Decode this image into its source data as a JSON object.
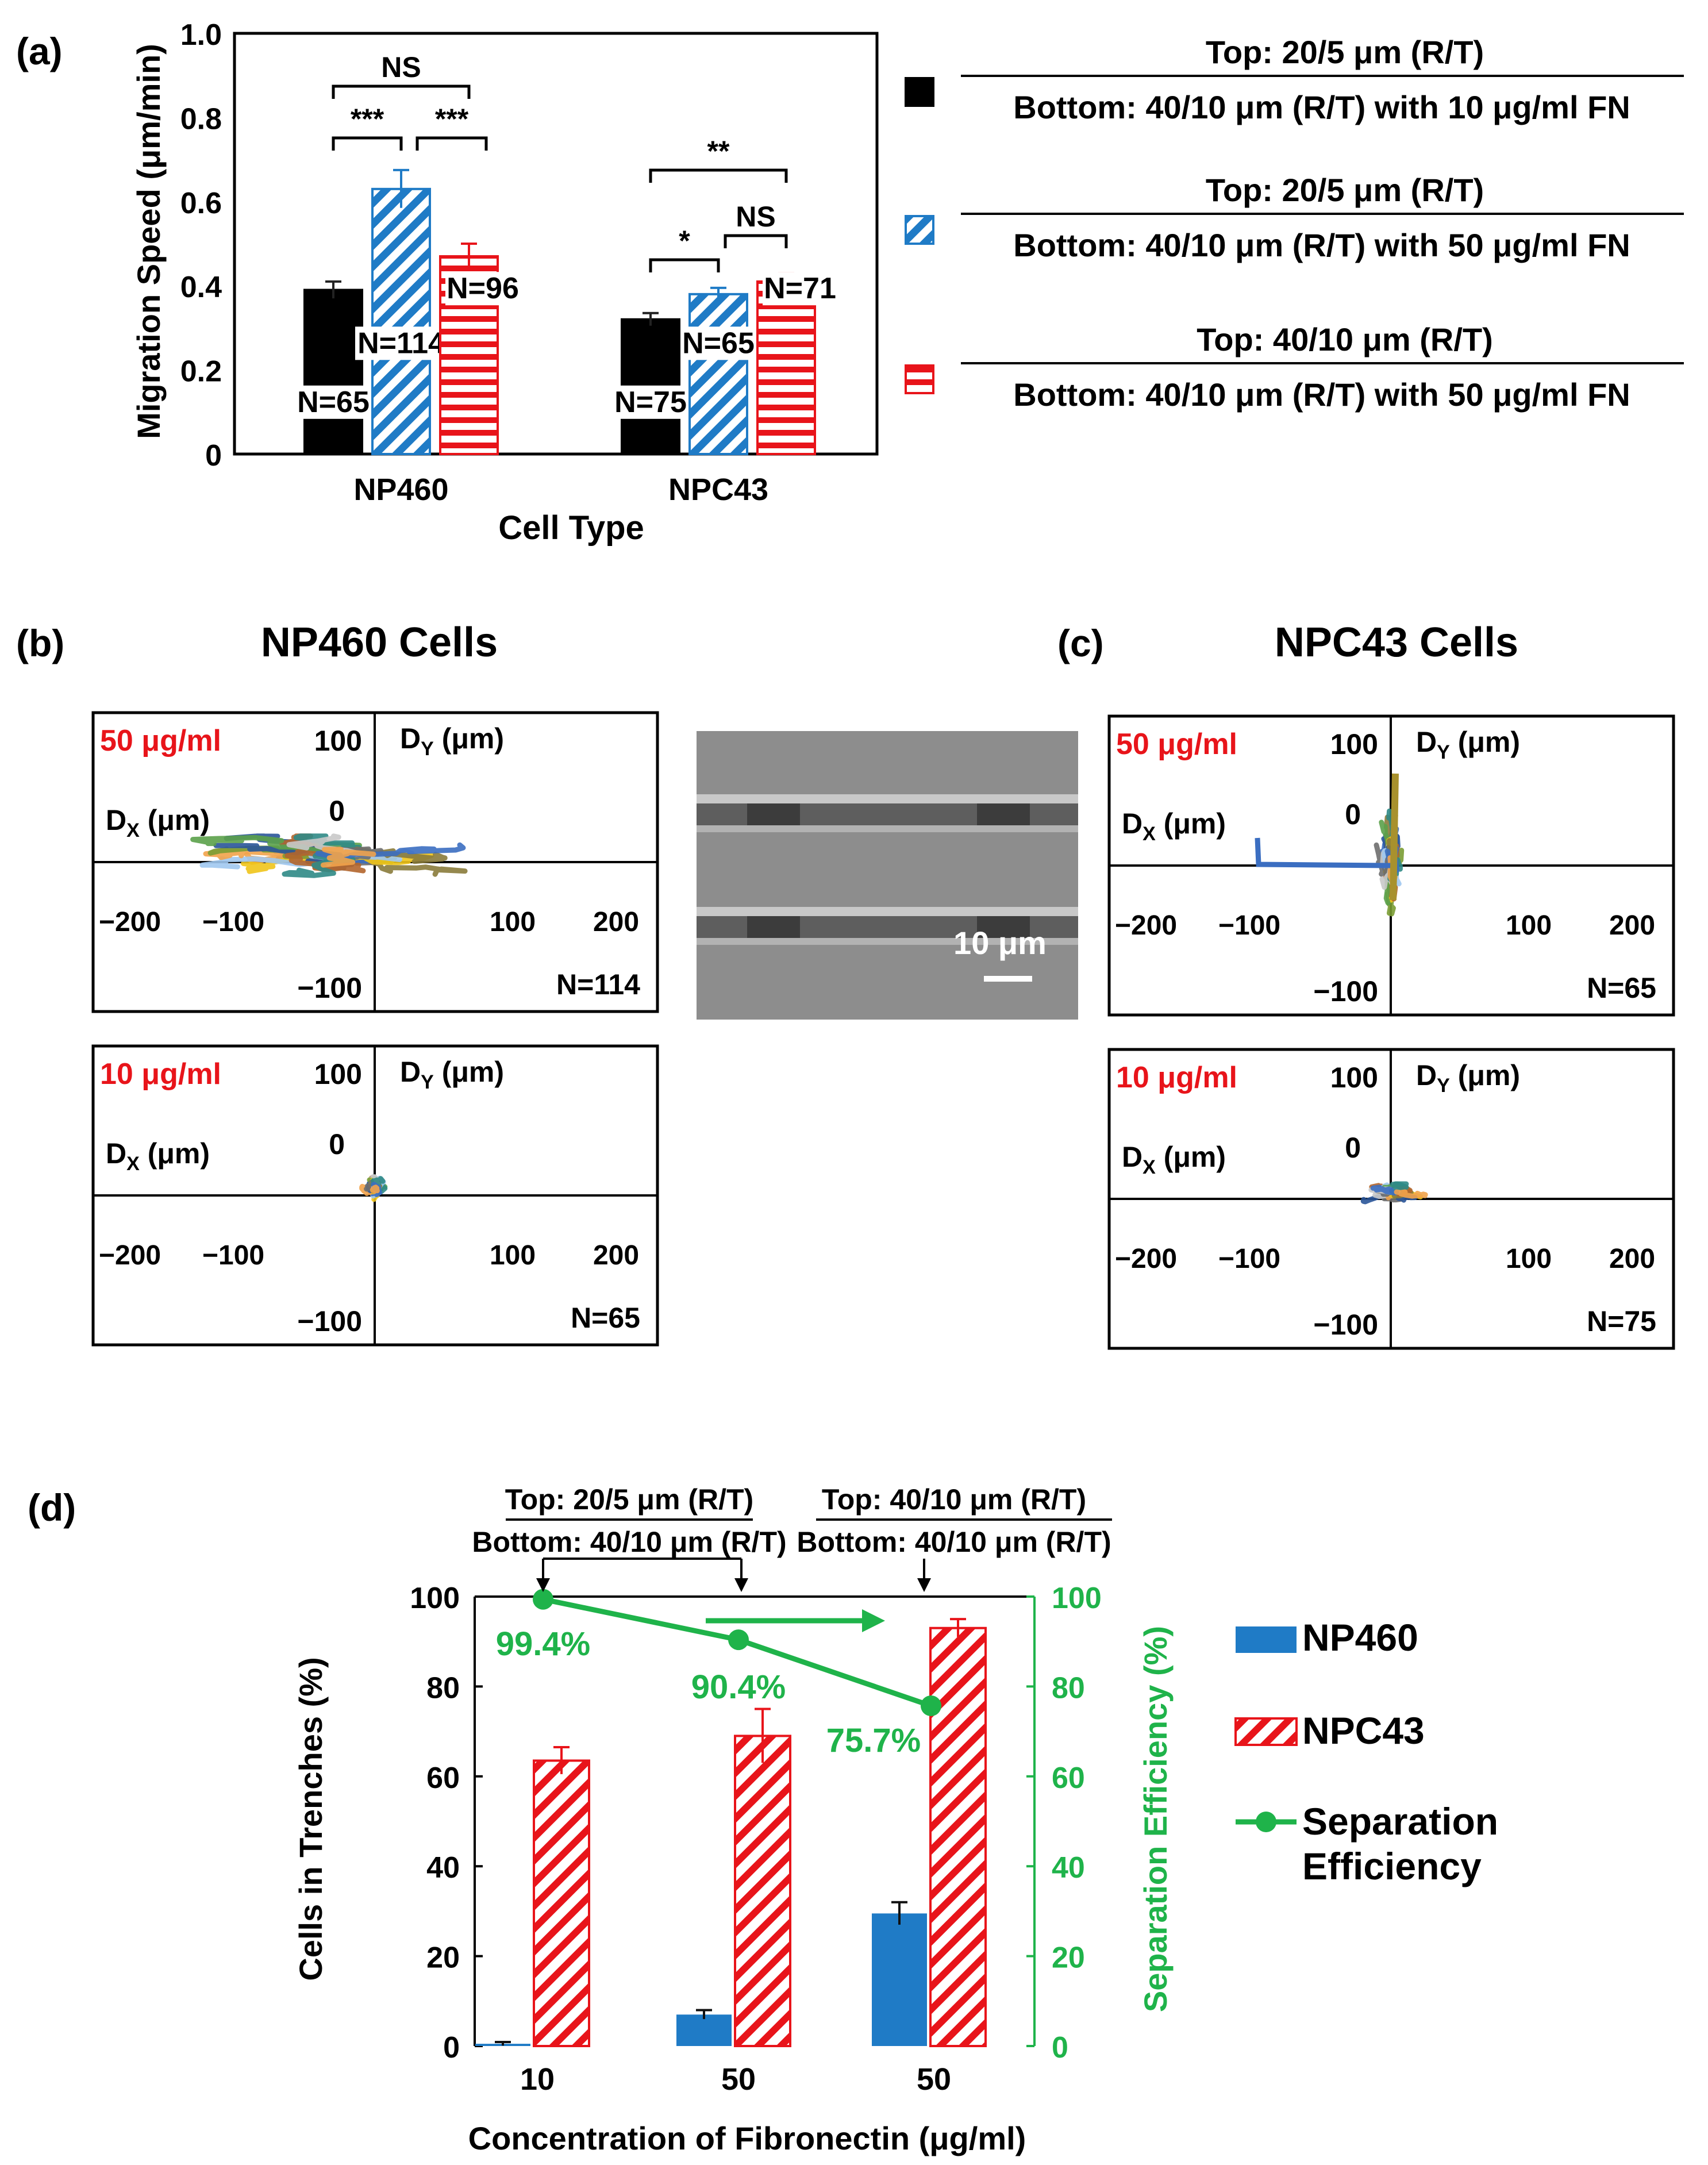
{
  "colors": {
    "black": "#000000",
    "blue": "#1f7bc6",
    "red": "#e8141a",
    "green": "#1fb34a",
    "sem_bg": "#8d8d8d"
  },
  "chart_data": [
    {
      "panel": "(a)",
      "type": "bar",
      "xlabel": "Cell Type",
      "ylabel": "Migration Speed (μm/min)",
      "ylim": [
        0,
        1.0
      ],
      "yticks": [
        "0",
        "0.2",
        "0.4",
        "0.6",
        "0.8",
        "1.0"
      ],
      "categories": [
        "NP460",
        "NPC43"
      ],
      "series": [
        {
          "name": "Top: 20/5 μm (R/T) | Bottom: 40/10 μm (R/T) with 10 μg/ml FN",
          "fill": "solid-black",
          "values": [
            0.39,
            0.32
          ],
          "errors": [
            0.02,
            0.015
          ],
          "n": [
            "N=65",
            "N=75"
          ]
        },
        {
          "name": "Top: 20/5 μm (R/T) | Bottom: 40/10 μm (R/T) with 50 μg/ml FN",
          "fill": "blue-diagonal",
          "values": [
            0.63,
            0.38
          ],
          "errors": [
            0.045,
            0.015
          ],
          "n": [
            "N=114",
            "N=65"
          ]
        },
        {
          "name": "Top: 40/10 μm (R/T) | Bottom: 40/10 μm (R/T) with 50 μg/ml FN",
          "fill": "red-horizontal",
          "values": [
            0.47,
            0.41
          ],
          "errors": [
            0.03,
            0.02
          ],
          "n": [
            "N=96",
            "N=71"
          ]
        }
      ],
      "significance": [
        {
          "label": "NS"
        },
        {
          "label": "***"
        },
        {
          "label": "***"
        },
        {
          "label": "**"
        },
        {
          "label": "*"
        },
        {
          "label": "NS"
        }
      ],
      "legend": [
        {
          "top": "Top: 20/5 μm (R/T)",
          "bottom": "Bottom: 40/10 μm (R/T) with 10 μg/ml FN"
        },
        {
          "top": "Top: 20/5 μm (R/T)",
          "bottom": "Bottom: 40/10 μm (R/T) with 50 μg/ml FN"
        },
        {
          "top": "Top: 40/10 μm (R/T)",
          "bottom": "Bottom: 40/10 μm (R/T) with 50 μg/ml FN"
        }
      ]
    },
    {
      "panel": "(d)",
      "type": "bar",
      "xlabel": "Concentration of Fibronectin (μg/ml)",
      "ylabel": "Cells in Trenches (%)",
      "y2label": "Separation Efficiency (%)",
      "ylim": [
        0,
        100
      ],
      "y2lim": [
        0,
        100
      ],
      "yticks": [
        "0",
        "20",
        "40",
        "60",
        "80",
        "100"
      ],
      "categories": [
        "10",
        "50",
        "50"
      ],
      "series": [
        {
          "name": "NP460",
          "values": [
            0.5,
            7,
            29.5
          ],
          "errors": [
            0.4,
            1,
            2.5
          ]
        },
        {
          "name": "NPC43",
          "values": [
            63.5,
            69,
            93
          ],
          "errors": [
            3,
            6,
            2
          ]
        },
        {
          "name": "Separation Efficiency",
          "type": "line",
          "axis": "right",
          "values": [
            99.4,
            90.4,
            75.7
          ],
          "labels": [
            "99.4%",
            "90.4%",
            "75.7%"
          ]
        }
      ],
      "legend": [
        "NP460",
        "NPC43",
        "Separation Efficiency"
      ],
      "annotations": [
        {
          "top": "Top: 20/5 μm (R/T)",
          "bottom": "Bottom: 40/10 μm (R/T)"
        },
        {
          "top": "Top: 40/10 μm (R/T)",
          "bottom": "Bottom: 40/10 μm (R/T)"
        }
      ]
    }
  ],
  "panel_a": {
    "label": "(a)"
  },
  "panel_b": {
    "label": "(b)",
    "title": "NP460 Cells"
  },
  "panel_c": {
    "label": "(c)",
    "title": "NPC43 Cells"
  },
  "panel_d": {
    "label": "(d)"
  },
  "track_plots": [
    {
      "id": "b50",
      "conc": "50 μg/ml",
      "n": "N=114"
    },
    {
      "id": "b10",
      "conc": "10 μg/ml",
      "n": "N=65"
    },
    {
      "id": "c50",
      "conc": "50 μg/ml",
      "n": "N=65"
    },
    {
      "id": "c10",
      "conc": "10 μg/ml",
      "n": "N=75"
    }
  ],
  "track_axis": {
    "y_top": "100",
    "y_zero": "0",
    "y_bottom": "−100",
    "x_neg200": "−200",
    "x_neg100": "−100",
    "x_100": "100",
    "x_200": "200",
    "dy": "D",
    "dy_sub": "Y",
    "dx": "D",
    "dx_sub": "X",
    "unit": " (μm)"
  },
  "sem": {
    "scale": "10 μm"
  }
}
